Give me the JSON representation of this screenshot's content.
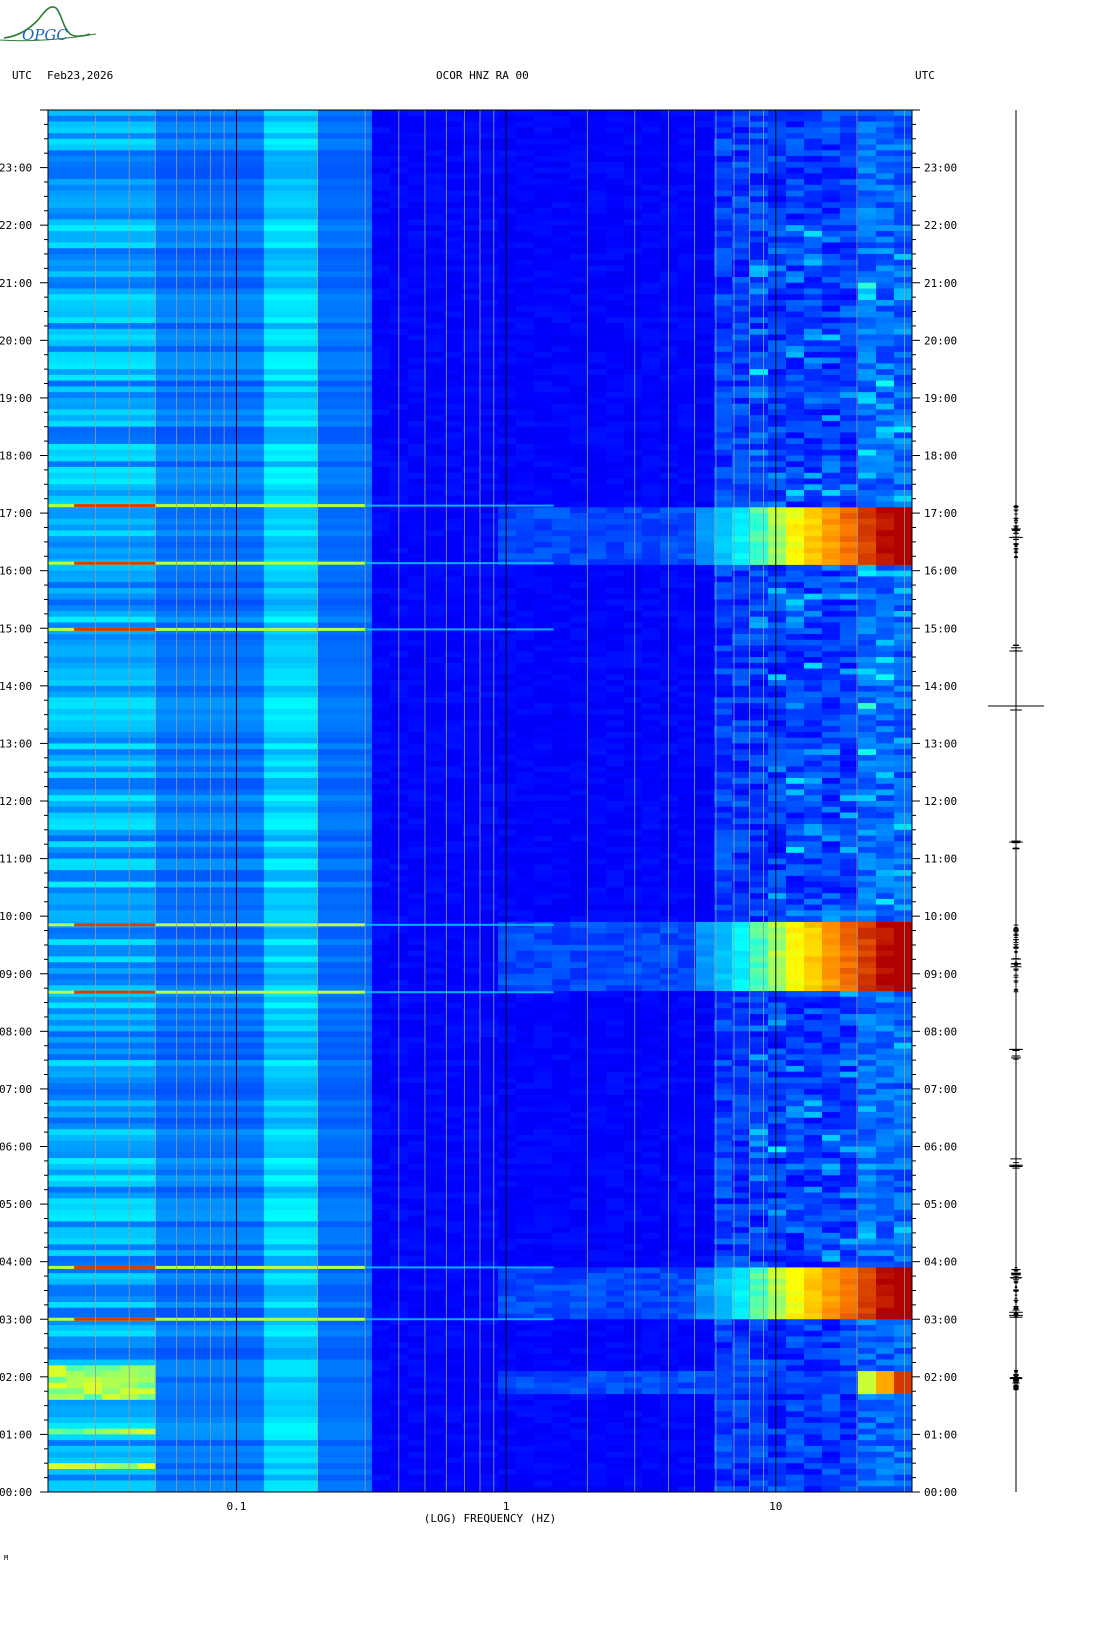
{
  "header": {
    "left_tz": "UTC",
    "date": "Feb23,2026",
    "station": "OCOR HNZ RA 00",
    "right_tz": "UTC"
  },
  "logo": {
    "text": "OPGC",
    "color": "#2e7d32"
  },
  "footer_mark": "M",
  "chart_data": {
    "type": "heatmap",
    "title": "OCOR HNZ RA 00",
    "xlabel": "(LOG) FREQUENCY (HZ)",
    "ylabel": "UTC",
    "x_scale": "log",
    "xlim": [
      0.02,
      32
    ],
    "x_ticks": [
      {
        "value": 0.1,
        "label": "0.1"
      },
      {
        "value": 1,
        "label": "1"
      },
      {
        "value": 10,
        "label": "10"
      }
    ],
    "ylim_hours": [
      0,
      24
    ],
    "y_ticks": [
      "00:00",
      "01:00",
      "02:00",
      "03:00",
      "04:00",
      "05:00",
      "06:00",
      "07:00",
      "08:00",
      "09:00",
      "10:00",
      "11:00",
      "12:00",
      "13:00",
      "14:00",
      "15:00",
      "16:00",
      "17:00",
      "18:00",
      "19:00",
      "20:00",
      "21:00",
      "22:00",
      "23:00"
    ],
    "colormap": [
      "#00009c",
      "#0000ff",
      "#0080ff",
      "#00ffff",
      "#ffff00",
      "#ff8000",
      "#b00000"
    ],
    "high_energy_bands_utc": [
      {
        "start": 16.13,
        "end": 17.13,
        "fmin": 5,
        "level": "very high"
      },
      {
        "start": 8.68,
        "end": 9.85,
        "fmin": 5,
        "level": "very high"
      },
      {
        "start": 3.0,
        "end": 3.9,
        "fmin": 5,
        "level": "very high"
      },
      {
        "start": 1.75,
        "end": 2.12,
        "fmin": 20,
        "level": "high"
      }
    ],
    "low_frequency_bands_utc": [
      {
        "start": 0.35,
        "end": 0.55,
        "level": "moderate"
      },
      {
        "start": 0.95,
        "end": 1.05,
        "level": "moderate"
      },
      {
        "start": 1.6,
        "end": 2.2,
        "level": "moderate"
      }
    ],
    "impulse_lines_utc": [
      17.13,
      16.13,
      14.98,
      9.85,
      8.68,
      3.9,
      3.0
    ],
    "trace": {
      "events_utc": [
        16.65,
        14.68,
        11.25,
        9.2,
        7.6,
        5.7,
        3.8,
        3.1,
        1.9
      ],
      "large_event_utc": 13.65
    }
  }
}
